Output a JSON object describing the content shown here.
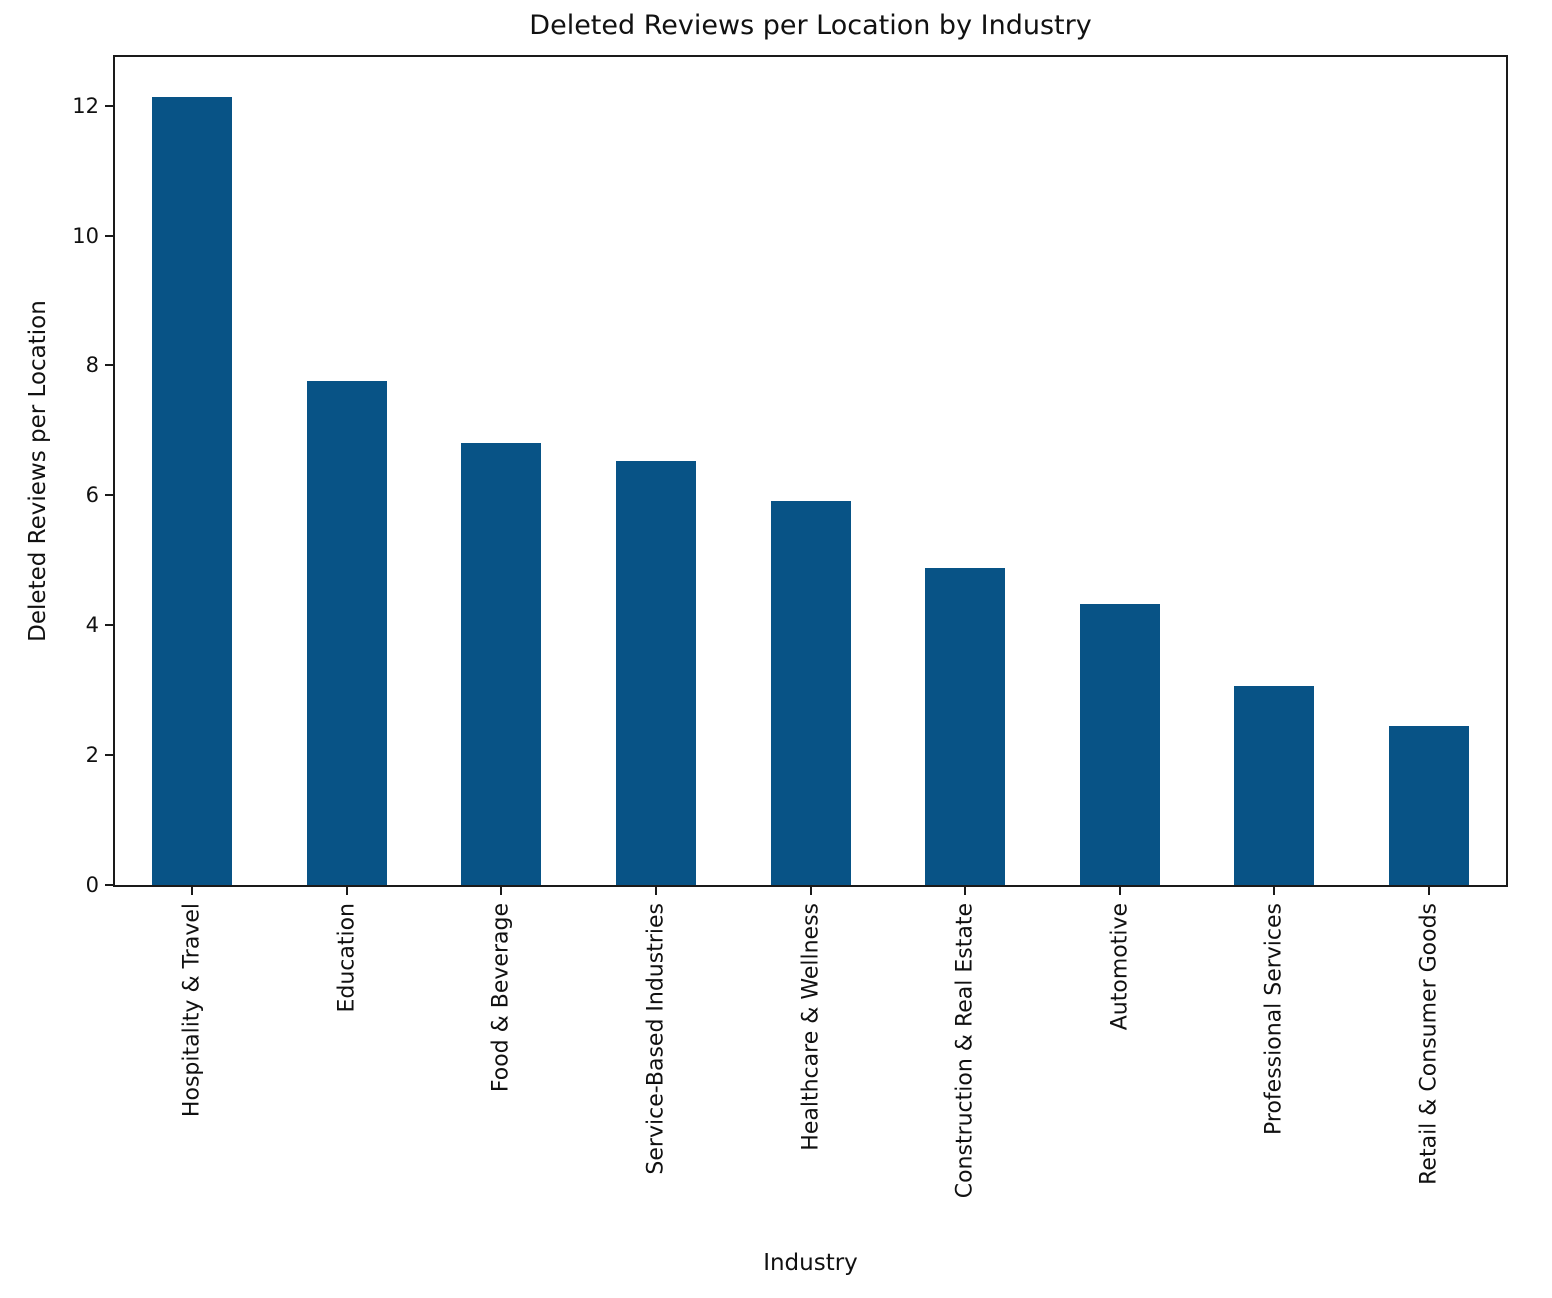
{
  "chart_data": {
    "type": "bar",
    "title": "Deleted Reviews per Location by Industry",
    "xlabel": "Industry",
    "ylabel": "Deleted Reviews per Location",
    "categories": [
      "Hospitality & Travel",
      "Education",
      "Food & Beverage",
      "Service-Based Industries",
      "Healthcare & Wellness",
      "Construction & Real Estate",
      "Automotive",
      "Professional Services",
      "Retail & Consumer Goods"
    ],
    "values": [
      12.13,
      7.76,
      6.81,
      6.53,
      5.92,
      4.88,
      4.32,
      3.06,
      2.45
    ],
    "ylim": [
      0,
      12.75
    ],
    "yticks": [
      0,
      2,
      4,
      6,
      8,
      10,
      12
    ],
    "x_tick_rotation_deg": 90,
    "grid": false,
    "legend": null,
    "bar_color": "#085386",
    "axis_color": "#1a1a1a"
  }
}
